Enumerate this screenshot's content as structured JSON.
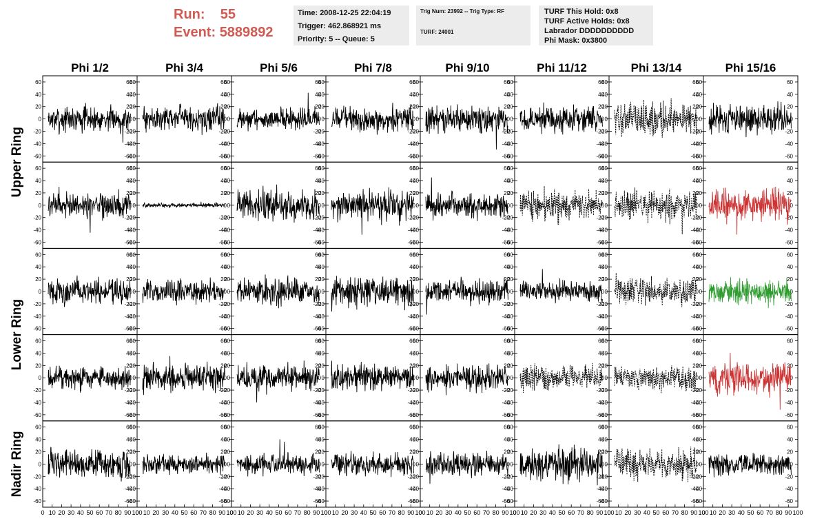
{
  "header": {
    "run_label": "Run:",
    "run_value": "55",
    "event_label": "Event:",
    "event_value": "5889892",
    "time": "Time: 2008-12-25 22:04:19",
    "trigger": "Trigger: 462.868921 ms",
    "priority": "Priority: 5 -- Queue: 5",
    "trig_num": "Trig Num: 23992 -- Trig Type: RF",
    "turf": "TURF: 24001",
    "turf_this_hold": "TURF This Hold: 0x8",
    "turf_active_holds": "TURF Active Holds: 0x8",
    "labrador": "Labrador DDDDDDDDDD",
    "phi_mask": "Phi Mask: 0x3800"
  },
  "chart_data": {
    "type": "line",
    "columns": [
      "Phi 1/2",
      "Phi 3/4",
      "Phi 5/6",
      "Phi 7/8",
      "Phi 9/10",
      "Phi 11/12",
      "Phi 13/14",
      "Phi 15/16"
    ],
    "rows": [
      "Upper Ring",
      "Upper Ring",
      "Lower Ring",
      "Lower Ring",
      "Nadir Ring"
    ],
    "row_labels": [
      "Upper Ring",
      "Lower Ring",
      "Nadir Ring"
    ],
    "y_ticks": [
      60,
      40,
      20,
      0,
      -20,
      -40,
      -60
    ],
    "ylim": [
      -70,
      70
    ],
    "xlim": [
      0,
      100
    ],
    "x_ticks": [
      0,
      10,
      20,
      30,
      40,
      50,
      60,
      70,
      80,
      90,
      100
    ],
    "samples_per_trace": 260,
    "amplitude": [
      [
        12,
        12,
        10,
        12,
        13,
        12,
        16,
        14
      ],
      [
        12,
        2,
        15,
        14,
        12,
        14,
        14,
        16
      ],
      [
        12,
        11,
        13,
        14,
        11,
        10,
        14,
        12
      ],
      [
        11,
        13,
        13,
        13,
        12,
        12,
        12,
        16
      ],
      [
        14,
        9,
        10,
        11,
        11,
        15,
        15,
        11
      ]
    ],
    "style": [
      [
        "solid",
        "solid",
        "solid",
        "solid",
        "solid",
        "solid",
        "dashed",
        "solid"
      ],
      [
        "solid",
        "solid",
        "solid",
        "solid",
        "solid",
        "dashed",
        "dashed",
        "solid"
      ],
      [
        "solid",
        "solid",
        "solid",
        "solid",
        "solid",
        "solid",
        "dashed",
        "solid"
      ],
      [
        "solid",
        "solid",
        "solid",
        "solid",
        "solid",
        "dashed",
        "dashed",
        "solid"
      ],
      [
        "solid",
        "solid",
        "solid",
        "solid",
        "solid",
        "solid",
        "dashed",
        "solid"
      ]
    ],
    "color": [
      [
        "#000000",
        "#000000",
        "#000000",
        "#000000",
        "#000000",
        "#000000",
        "#000000",
        "#000000"
      ],
      [
        "#000000",
        "#000000",
        "#000000",
        "#000000",
        "#000000",
        "#000000",
        "#000000",
        "#cc3333"
      ],
      [
        "#000000",
        "#000000",
        "#000000",
        "#000000",
        "#000000",
        "#000000",
        "#000000",
        "#2e9c2e"
      ],
      [
        "#000000",
        "#000000",
        "#000000",
        "#000000",
        "#000000",
        "#000000",
        "#000000",
        "#cc3333"
      ],
      [
        "#000000",
        "#000000",
        "#000000",
        "#000000",
        "#000000",
        "#000000",
        "#000000",
        "#000000"
      ]
    ]
  }
}
